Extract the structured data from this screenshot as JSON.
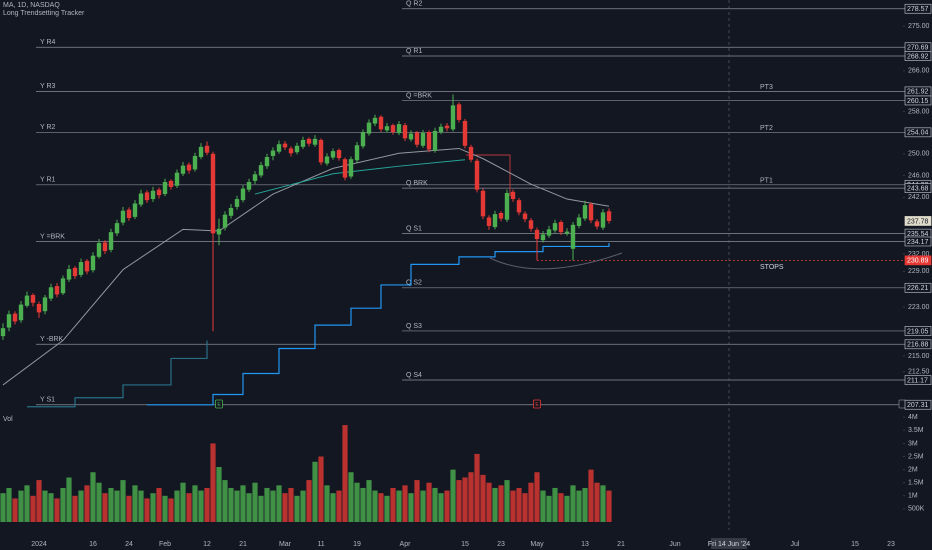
{
  "chart_data": {
    "type": "candlestick",
    "title": "MA, 1D, NASDAQ",
    "subtitle": "Long Trendsetting Tracker",
    "x": [
      "2023-12-21",
      "2023-12-22",
      "2023-12-26",
      "2023-12-27",
      "2023-12-28",
      "2023-12-29",
      "2024-01-02",
      "2024-01-03",
      "2024-01-04",
      "2024-01-05",
      "2024-01-08",
      "2024-01-09",
      "2024-01-10",
      "2024-01-11",
      "2024-01-12",
      "2024-01-16",
      "2024-01-17",
      "2024-01-18",
      "2024-01-19",
      "2024-01-22",
      "2024-01-23",
      "2024-01-24",
      "2024-01-25",
      "2024-01-26",
      "2024-01-29",
      "2024-01-30",
      "2024-01-31",
      "2024-02-01",
      "2024-02-02",
      "2024-02-05",
      "2024-02-06",
      "2024-02-07",
      "2024-02-08",
      "2024-02-09",
      "2024-02-12",
      "2024-02-13",
      "2024-02-14",
      "2024-02-15",
      "2024-02-16",
      "2024-02-20",
      "2024-02-21",
      "2024-02-22",
      "2024-02-23",
      "2024-02-26",
      "2024-02-27",
      "2024-02-28",
      "2024-02-29",
      "2024-03-01",
      "2024-03-04",
      "2024-03-05",
      "2024-03-06",
      "2024-03-07",
      "2024-03-08",
      "2024-03-11",
      "2024-03-12",
      "2024-03-13",
      "2024-03-14",
      "2024-03-15",
      "2024-03-18",
      "2024-03-19",
      "2024-03-20",
      "2024-03-21",
      "2024-03-22",
      "2024-03-25",
      "2024-03-26",
      "2024-03-27",
      "2024-03-28",
      "2024-04-01",
      "2024-04-02",
      "2024-04-03",
      "2024-04-04",
      "2024-04-05",
      "2024-04-08",
      "2024-04-09",
      "2024-04-10",
      "2024-04-11",
      "2024-04-12",
      "2024-04-15",
      "2024-04-16",
      "2024-04-17",
      "2024-04-18",
      "2024-04-19",
      "2024-04-22",
      "2024-04-23",
      "2024-04-24",
      "2024-04-25",
      "2024-04-26",
      "2024-04-29",
      "2024-04-30",
      "2024-05-01",
      "2024-05-02",
      "2024-05-03",
      "2024-05-06",
      "2024-05-07",
      "2024-05-08",
      "2024-05-09",
      "2024-05-10",
      "2024-05-13",
      "2024-05-14",
      "2024-05-15",
      "2024-05-16",
      "2024-05-17"
    ],
    "open": [
      218.2,
      219.6,
      221.9,
      220.8,
      223.2,
      225.0,
      223.5,
      222.3,
      224.4,
      226.5,
      225.3,
      227.6,
      229.6,
      228.4,
      230.8,
      229.2,
      231.5,
      234.0,
      232.7,
      235.6,
      237.5,
      239.8,
      238.5,
      240.7,
      242.9,
      241.7,
      243.4,
      242.6,
      245.0,
      244.1,
      246.3,
      248.0,
      247.1,
      249.4,
      251.5,
      250.0,
      235.4,
      236.6,
      238.7,
      240.3,
      241.5,
      243.4,
      245.0,
      246.0,
      247.7,
      249.6,
      250.4,
      251.9,
      251.0,
      250.3,
      251.3,
      252.8,
      251.7,
      252.6,
      248.2,
      249.3,
      250.7,
      249.0,
      245.8,
      248.8,
      251.4,
      253.8,
      255.7,
      257.0,
      254.4,
      255.4,
      253.9,
      255.4,
      252.7,
      254.0,
      251.5,
      254.1,
      250.6,
      254.1,
      255.3,
      254.6,
      259.4,
      256.2,
      251.3,
      248.7,
      243.2,
      238.4,
      236.7,
      239.2,
      238.0,
      243.0,
      241.5,
      239.1,
      237.9,
      236.2,
      234.4,
      235.2,
      236.1,
      237.6,
      235.6,
      232.9,
      236.9,
      238.2,
      240.8,
      237.7,
      236.6,
      239.5
    ],
    "high": [
      220.3,
      222.4,
      222.3,
      224.0,
      225.6,
      225.3,
      223.9,
      225.0,
      226.9,
      227.0,
      228.3,
      230.1,
      229.9,
      231.2,
      231.1,
      232.3,
      234.6,
      234.4,
      236.4,
      238.0,
      240.3,
      240.2,
      241.5,
      243.4,
      243.3,
      243.9,
      243.8,
      245.4,
      245.3,
      247.1,
      248.5,
      248.4,
      250.2,
      252.0,
      252.3,
      250.4,
      238.2,
      239.5,
      240.8,
      242.3,
      244.2,
      245.4,
      246.8,
      248.5,
      250.0,
      251.2,
      252.5,
      252.4,
      251.4,
      252.1,
      253.2,
      253.1,
      253.5,
      252.9,
      250.1,
      251.0,
      251.0,
      249.3,
      249.5,
      252.2,
      254.6,
      256.5,
      257.4,
      257.3,
      255.8,
      255.7,
      256.2,
      255.8,
      254.4,
      254.3,
      254.5,
      254.4,
      254.9,
      255.7,
      255.8,
      261.3,
      259.8,
      256.6,
      251.7,
      249.1,
      243.6,
      238.8,
      239.6,
      239.5,
      243.4,
      243.4,
      241.9,
      239.5,
      238.3,
      236.6,
      236.0,
      236.9,
      238.0,
      237.9,
      236.5,
      237.6,
      239.0,
      241.4,
      241.1,
      238.1,
      239.9,
      240.0
    ],
    "low": [
      217.6,
      219.0,
      220.1,
      220.4,
      222.9,
      223.1,
      221.2,
      221.8,
      224.0,
      224.6,
      225.0,
      227.2,
      227.7,
      228.0,
      228.5,
      228.8,
      231.2,
      232.0,
      232.3,
      235.1,
      237.0,
      237.8,
      238.1,
      240.3,
      241.0,
      241.2,
      241.8,
      242.2,
      243.4,
      243.7,
      245.9,
      246.3,
      246.7,
      249.0,
      249.7,
      219.0,
      233.5,
      236.1,
      238.2,
      239.8,
      241.1,
      243.0,
      244.4,
      245.6,
      247.2,
      248.8,
      250.0,
      250.7,
      249.5,
      249.9,
      250.9,
      251.4,
      251.3,
      247.9,
      247.8,
      248.9,
      248.7,
      245.1,
      245.4,
      248.4,
      251.0,
      253.4,
      255.2,
      254.1,
      254.0,
      253.6,
      253.5,
      252.4,
      252.3,
      251.2,
      251.1,
      250.3,
      250.2,
      253.7,
      254.2,
      254.2,
      255.9,
      251.0,
      248.4,
      242.9,
      238.1,
      236.2,
      236.3,
      237.7,
      237.6,
      241.2,
      238.8,
      237.6,
      235.9,
      230.9,
      234.0,
      234.8,
      235.7,
      235.3,
      235.2,
      230.9,
      236.5,
      237.8,
      237.4,
      236.3,
      236.2,
      237.3
    ],
    "close": [
      219.5,
      221.8,
      220.6,
      223.4,
      224.9,
      223.7,
      222.1,
      224.6,
      226.3,
      225.1,
      227.8,
      229.4,
      228.2,
      230.6,
      229.0,
      231.7,
      233.9,
      232.5,
      235.8,
      237.4,
      239.6,
      238.3,
      240.9,
      242.7,
      241.5,
      243.2,
      242.4,
      244.8,
      243.9,
      246.5,
      247.8,
      246.9,
      249.6,
      251.3,
      250.2,
      235.6,
      236.4,
      238.9,
      240.1,
      241.7,
      243.6,
      244.8,
      246.2,
      247.9,
      249.4,
      250.6,
      251.8,
      251.2,
      250.1,
      251.5,
      252.6,
      251.9,
      252.8,
      248.4,
      249.5,
      250.5,
      249.2,
      245.6,
      249.0,
      251.6,
      254.0,
      255.9,
      256.8,
      254.6,
      255.2,
      254.1,
      255.6,
      252.9,
      253.8,
      251.7,
      253.9,
      250.8,
      254.3,
      255.1,
      254.8,
      259.2,
      256.4,
      251.5,
      248.9,
      243.4,
      238.6,
      236.9,
      239.0,
      238.2,
      242.8,
      241.7,
      239.3,
      238.1,
      236.4,
      234.6,
      235.4,
      236.3,
      237.4,
      235.8,
      235.9,
      237.1,
      238.4,
      240.6,
      237.9,
      236.8,
      239.3,
      237.78
    ],
    "up_color": "#4caf50",
    "down_color": "#e53935",
    "log_scale": true,
    "grid": false,
    "ylim": [
      206.5,
      280.4
    ],
    "yticks": [
      {
        "value": 275,
        "label": "275.00"
      },
      {
        "value": 266,
        "label": "266.00"
      },
      {
        "value": 258,
        "label": "258.00"
      },
      {
        "value": 250,
        "label": "250.00"
      },
      {
        "value": 246,
        "label": "246.00"
      },
      {
        "value": 242,
        "label": "242.00"
      },
      {
        "value": 232,
        "label": "232.00"
      },
      {
        "value": 229,
        "label": "229.00"
      },
      {
        "value": 223,
        "label": "223.00"
      },
      {
        "value": 215,
        "label": "215.00"
      },
      {
        "value": 212.5,
        "label": "212.50"
      }
    ],
    "xticks": [
      {
        "value": "2024-01-02",
        "label": "2024"
      },
      {
        "value": "2024-01-16",
        "label": "16"
      },
      {
        "value": "2024-01-24",
        "label": "24"
      },
      {
        "value": "2024-02-01",
        "label": "Feb"
      },
      {
        "value": "2024-02-12",
        "label": "12"
      },
      {
        "value": "2024-02-21",
        "label": "21"
      },
      {
        "value": "2024-03-01",
        "label": "Mar"
      },
      {
        "value": "2024-03-11",
        "label": "11"
      },
      {
        "value": "2024-03-19",
        "label": "19"
      },
      {
        "value": "2024-04-01",
        "label": "Apr"
      },
      {
        "value": "2024-04-15",
        "label": "15"
      },
      {
        "value": "2024-04-23",
        "label": "23"
      },
      {
        "value": "2024-05-01",
        "label": "May"
      },
      {
        "value": "2024-05-13",
        "label": "13"
      },
      {
        "value": "2024-05-21",
        "label": "21"
      },
      {
        "value": "2024-06-03",
        "label": "Jun"
      },
      {
        "value": "2024-07-01",
        "label": "Jul"
      },
      {
        "value": "2024-07-15",
        "label": "15"
      },
      {
        "value": "2024-07-23",
        "label": "23"
      }
    ],
    "last_price": 237.78,
    "lines": [
      {
        "style": "line",
        "color": "#9598a1",
        "x": [
          "2023-12-21",
          "2024-01-08",
          "2024-01-23",
          "2024-02-06",
          "2024-02-14",
          "2024-02-28",
          "2024-03-13",
          "2024-03-28",
          "2024-04-12",
          "2024-04-18",
          "2024-04-30",
          "2024-05-08",
          "2024-05-17"
        ],
        "values": [
          210.4,
          217.5,
          229.3,
          236.3,
          236.0,
          242.6,
          247.3,
          250.1,
          251.0,
          249.1,
          244.4,
          241.7,
          240.4
        ]
      },
      {
        "style": "line",
        "color": "#26a69a",
        "x": [
          "2024-02-23",
          "2024-03-13",
          "2024-03-28",
          "2024-04-15"
        ],
        "values": [
          242.6,
          246.3,
          247.7,
          248.9
        ]
      },
      {
        "style": "step",
        "color": "#2196f3",
        "x": [
          "2024-01-29",
          "2024-02-13",
          "2024-02-21",
          "2024-02-29",
          "2024-03-08",
          "2024-03-18",
          "2024-03-25",
          "2024-04-02",
          "2024-04-12",
          "2024-04-22",
          "2024-05-02",
          "2024-05-17"
        ],
        "values": [
          207.3,
          208.9,
          212.2,
          216.2,
          220.0,
          222.8,
          226.7,
          230.2,
          231.5,
          232.4,
          233.3,
          233.9
        ]
      },
      {
        "style": "step",
        "color": "#2a6f86",
        "x": [
          "2023-12-28",
          "2024-01-10",
          "2024-01-23",
          "2024-02-02",
          "2024-02-12"
        ],
        "values": [
          207.0,
          208.4,
          210.4,
          214.6,
          217.5
        ]
      }
    ],
    "levels": [
      {
        "name": "Q R2",
        "value": 278.57,
        "start": "2024-04-01"
      },
      {
        "name": "Y R4",
        "value": 270.69,
        "start": "2024-01-02"
      },
      {
        "name": "Q R1",
        "value": 268.92,
        "start": "2024-04-01"
      },
      {
        "name": "Y R3",
        "value": 261.92,
        "start": "2024-01-02"
      },
      {
        "name": "Q =BRK",
        "value": 260.15,
        "start": "2024-04-01"
      },
      {
        "name": "Y R2",
        "value": 254.04,
        "start": "2024-01-02"
      },
      {
        "name": "Y R1",
        "value": 244.28,
        "start": "2024-01-02"
      },
      {
        "name": "Q BRK",
        "value": 243.68,
        "start": "2024-04-01"
      },
      {
        "name": "Q S1",
        "value": 235.54,
        "start": "2024-04-01"
      },
      {
        "name": "Y =BRK",
        "value": 234.17,
        "start": "2024-01-02"
      },
      {
        "name": "Q S2",
        "value": 226.21,
        "start": "2024-04-01"
      },
      {
        "name": "Q S3",
        "value": 219.05,
        "start": "2024-04-01"
      },
      {
        "name": "Y -BRK",
        "value": 216.88,
        "start": "2024-01-02"
      },
      {
        "name": "Q S4",
        "value": 211.17,
        "start": "2024-04-01"
      },
      {
        "name": "Y S1",
        "value": 207.31,
        "start": "2024-01-02"
      }
    ],
    "annotations": [
      {
        "text": "PT3",
        "value": 261.92
      },
      {
        "text": "PT2",
        "value": 254.04
      },
      {
        "text": "PT1",
        "value": 244.28
      }
    ],
    "stop": {
      "text": "STOPS",
      "value": 230.89,
      "color": "#e53935",
      "start": "2024-05-01"
    },
    "events": [
      {
        "x": "2024-02-14",
        "label": "E",
        "color": "#4caf50"
      },
      {
        "x": "2024-05-01",
        "label": "E",
        "color": "#e53935"
      }
    ],
    "crosshair": {
      "x": "2024-06-14",
      "label": "Fri 14 Jun '24"
    },
    "volume": {
      "label": "Vol",
      "values": [
        1.1,
        1.3,
        0.9,
        1.2,
        1.4,
        1.0,
        1.6,
        1.2,
        1.1,
        0.9,
        1.3,
        1.7,
        1.0,
        1.2,
        1.4,
        1.9,
        1.5,
        1.1,
        1.3,
        1.2,
        1.6,
        1.0,
        1.4,
        1.2,
        0.9,
        1.1,
        1.3,
        1.0,
        0.9,
        1.2,
        1.5,
        1.1,
        1.4,
        1.2,
        1.3,
        3.0,
        2.1,
        1.6,
        1.3,
        1.2,
        1.4,
        1.1,
        1.5,
        1.0,
        1.3,
        1.2,
        1.4,
        1.1,
        1.3,
        1.0,
        1.2,
        1.6,
        2.3,
        2.5,
        1.4,
        1.1,
        1.2,
        3.7,
        1.9,
        1.5,
        1.3,
        1.6,
        1.2,
        1.1,
        1.0,
        1.3,
        1.2,
        1.4,
        1.1,
        1.6,
        1.2,
        1.5,
        1.3,
        1.1,
        1.2,
        2.0,
        1.6,
        1.7,
        1.9,
        2.6,
        1.8,
        1.5,
        1.3,
        1.4,
        1.6,
        1.2,
        1.3,
        1.1,
        1.5,
        1.9,
        1.2,
        1.0,
        1.3,
        1.1,
        1.0,
        1.4,
        1.2,
        1.3,
        2.0,
        1.5,
        1.4,
        1.2
      ],
      "ylim": [
        0,
        4.2
      ],
      "yticks": [
        {
          "value": 4,
          "label": "4M"
        },
        {
          "value": 3.5,
          "label": "3.5M"
        },
        {
          "value": 3,
          "label": "3M"
        },
        {
          "value": 2.5,
          "label": "2.5M"
        },
        {
          "value": 2,
          "label": "2M"
        },
        {
          "value": 1.5,
          "label": "1.5M"
        },
        {
          "value": 1,
          "label": "1M"
        },
        {
          "value": 0.5,
          "label": "500K"
        }
      ]
    }
  }
}
